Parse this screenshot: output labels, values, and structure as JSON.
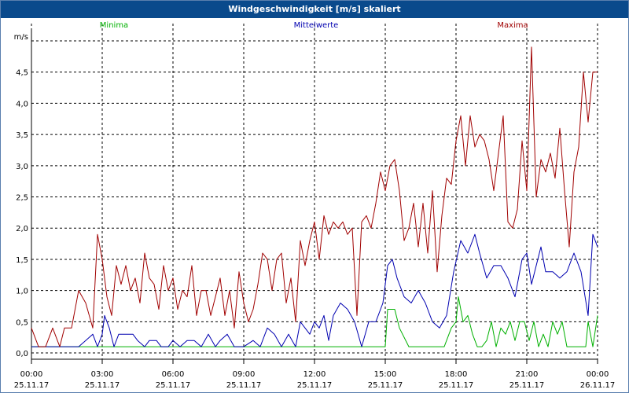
{
  "window": {
    "title": "Windgeschwindigkeit [m/s] skaliert"
  },
  "chart_data": {
    "type": "line",
    "title": "Windgeschwindigkeit [m/s] skaliert",
    "ylabel": "m/s",
    "ylim": [
      -0.1,
      5.0
    ],
    "xlim": [
      0,
      24
    ],
    "grid": true,
    "y_ticks": [
      0.0,
      0.5,
      1.0,
      1.5,
      2.0,
      2.5,
      3.0,
      3.5,
      4.0,
      4.5
    ],
    "y_tick_labels": [
      "0,0",
      "0,5",
      "1,0",
      "1,5",
      "2,0",
      "2,5",
      "3,0",
      "3,5",
      "4,0",
      "4,5"
    ],
    "x_ticks": [
      0,
      3,
      6,
      9,
      12,
      15,
      18,
      21,
      24
    ],
    "x_tick_labels": [
      {
        "time": "00:00",
        "date": "25.11.17"
      },
      {
        "time": "03:00",
        "date": "25.11.17"
      },
      {
        "time": "06:00",
        "date": "25.11.17"
      },
      {
        "time": "09:00",
        "date": "25.11.17"
      },
      {
        "time": "12:00",
        "date": "25.11.17"
      },
      {
        "time": "15:00",
        "date": "25.11.17"
      },
      {
        "time": "18:00",
        "date": "25.11.17"
      },
      {
        "time": "21:00",
        "date": "25.11.17"
      },
      {
        "time": "00:00",
        "date": "26.11.17"
      }
    ],
    "series": [
      {
        "name": "Minima",
        "color": "#00b000",
        "x": [
          0,
          15.0,
          15.1,
          15.4,
          15.6,
          16.0,
          17.5,
          17.8,
          18.0,
          18.1,
          18.3,
          18.5,
          18.7,
          18.9,
          19.1,
          19.3,
          19.5,
          19.7,
          19.9,
          20.1,
          20.3,
          20.5,
          20.7,
          20.9,
          21.1,
          21.3,
          21.5,
          21.7,
          21.9,
          22.1,
          22.3,
          22.5,
          22.7,
          22.9,
          23.1,
          23.3,
          23.5,
          23.6,
          23.8,
          24.0
        ],
        "y": [
          0.1,
          0.1,
          0.7,
          0.7,
          0.4,
          0.1,
          0.1,
          0.4,
          0.5,
          0.9,
          0.5,
          0.6,
          0.3,
          0.1,
          0.1,
          0.2,
          0.5,
          0.1,
          0.4,
          0.3,
          0.5,
          0.2,
          0.5,
          0.5,
          0.2,
          0.5,
          0.1,
          0.3,
          0.1,
          0.5,
          0.3,
          0.5,
          0.1,
          0.1,
          0.1,
          0.1,
          0.1,
          0.5,
          0.1,
          0.6
        ]
      },
      {
        "name": "Mittelwerte",
        "color": "#0000b0",
        "x": [
          0,
          2.0,
          2.3,
          2.6,
          2.8,
          3.0,
          3.1,
          3.3,
          3.5,
          3.7,
          4.0,
          4.3,
          4.5,
          4.8,
          5.0,
          5.3,
          5.5,
          5.8,
          6.0,
          6.3,
          6.6,
          6.9,
          7.2,
          7.5,
          7.8,
          8.0,
          8.3,
          8.6,
          9.0,
          9.4,
          9.7,
          10.0,
          10.3,
          10.6,
          10.9,
          11.2,
          11.4,
          11.6,
          11.8,
          12.0,
          12.2,
          12.4,
          12.6,
          12.8,
          13.1,
          13.4,
          13.7,
          14.0,
          14.3,
          14.6,
          14.9,
          15.1,
          15.3,
          15.5,
          15.8,
          16.1,
          16.4,
          16.7,
          17.0,
          17.3,
          17.6,
          17.9,
          18.2,
          18.5,
          18.8,
          19.0,
          19.3,
          19.6,
          19.9,
          20.2,
          20.5,
          20.8,
          21.0,
          21.2,
          21.4,
          21.6,
          21.8,
          22.1,
          22.4,
          22.7,
          23.0,
          23.3,
          23.6,
          23.8,
          24.0
        ],
        "y": [
          0.1,
          0.1,
          0.2,
          0.3,
          0.1,
          0.3,
          0.6,
          0.4,
          0.1,
          0.3,
          0.3,
          0.3,
          0.2,
          0.1,
          0.2,
          0.2,
          0.1,
          0.1,
          0.2,
          0.1,
          0.2,
          0.2,
          0.1,
          0.3,
          0.1,
          0.2,
          0.3,
          0.1,
          0.1,
          0.2,
          0.1,
          0.4,
          0.3,
          0.1,
          0.3,
          0.1,
          0.5,
          0.4,
          0.3,
          0.5,
          0.4,
          0.6,
          0.2,
          0.6,
          0.8,
          0.7,
          0.5,
          0.1,
          0.5,
          0.5,
          0.8,
          1.4,
          1.5,
          1.2,
          0.9,
          0.8,
          1.0,
          0.8,
          0.5,
          0.4,
          0.6,
          1.3,
          1.8,
          1.6,
          1.9,
          1.6,
          1.2,
          1.4,
          1.4,
          1.2,
          0.9,
          1.5,
          1.6,
          1.1,
          1.4,
          1.7,
          1.3,
          1.3,
          1.2,
          1.3,
          1.6,
          1.3,
          0.6,
          1.9,
          1.7
        ]
      },
      {
        "name": "Maxima",
        "color": "#a00000",
        "x": [
          0,
          0.3,
          0.6,
          0.9,
          1.2,
          1.4,
          1.7,
          2.0,
          2.3,
          2.6,
          2.8,
          3.0,
          3.2,
          3.4,
          3.6,
          3.8,
          4.0,
          4.2,
          4.4,
          4.6,
          4.8,
          5.0,
          5.2,
          5.4,
          5.6,
          5.8,
          6.0,
          6.2,
          6.4,
          6.6,
          6.8,
          7.0,
          7.2,
          7.4,
          7.6,
          7.8,
          8.0,
          8.2,
          8.4,
          8.6,
          8.8,
          9.0,
          9.2,
          9.4,
          9.6,
          9.8,
          10.0,
          10.2,
          10.4,
          10.6,
          10.8,
          11.0,
          11.2,
          11.4,
          11.6,
          11.8,
          12.0,
          12.2,
          12.4,
          12.6,
          12.8,
          13.0,
          13.2,
          13.4,
          13.6,
          13.8,
          14.0,
          14.2,
          14.4,
          14.6,
          14.8,
          15.0,
          15.2,
          15.4,
          15.6,
          15.8,
          16.0,
          16.2,
          16.4,
          16.6,
          16.8,
          17.0,
          17.2,
          17.4,
          17.6,
          17.8,
          18.0,
          18.2,
          18.4,
          18.6,
          18.8,
          19.0,
          19.2,
          19.4,
          19.6,
          19.8,
          20.0,
          20.2,
          20.4,
          20.6,
          20.8,
          21.0,
          21.2,
          21.4,
          21.6,
          21.8,
          22.0,
          22.2,
          22.4,
          22.6,
          22.8,
          23.0,
          23.2,
          23.4,
          23.6,
          23.8,
          24.0
        ],
        "y": [
          0.4,
          0.1,
          0.1,
          0.4,
          0.1,
          0.4,
          0.4,
          1.0,
          0.8,
          0.4,
          1.9,
          1.5,
          0.9,
          0.6,
          1.4,
          1.1,
          1.4,
          1.0,
          1.2,
          0.8,
          1.6,
          1.2,
          1.1,
          0.7,
          1.4,
          1.0,
          1.2,
          0.7,
          1.0,
          0.9,
          1.4,
          0.6,
          1.0,
          1.0,
          0.6,
          0.9,
          1.2,
          0.6,
          1.0,
          0.4,
          1.3,
          0.8,
          0.5,
          0.7,
          1.1,
          1.6,
          1.5,
          1.0,
          1.5,
          1.6,
          0.8,
          1.2,
          0.5,
          1.8,
          1.4,
          1.8,
          2.1,
          1.5,
          2.2,
          1.9,
          2.1,
          2.0,
          2.1,
          1.9,
          2.0,
          0.6,
          2.1,
          2.2,
          2.0,
          2.4,
          2.9,
          2.6,
          3.0,
          3.1,
          2.6,
          1.8,
          2.0,
          2.4,
          1.7,
          2.4,
          1.6,
          2.6,
          1.3,
          2.2,
          2.8,
          2.7,
          3.4,
          3.8,
          3.0,
          3.8,
          3.3,
          3.5,
          3.4,
          3.1,
          2.6,
          3.2,
          3.8,
          2.1,
          2.0,
          2.3,
          3.4,
          2.6,
          4.9,
          2.5,
          3.1,
          2.9,
          3.2,
          2.8,
          3.6,
          2.6,
          1.7,
          2.9,
          3.3,
          4.5,
          3.7,
          4.5,
          4.5
        ]
      }
    ]
  }
}
